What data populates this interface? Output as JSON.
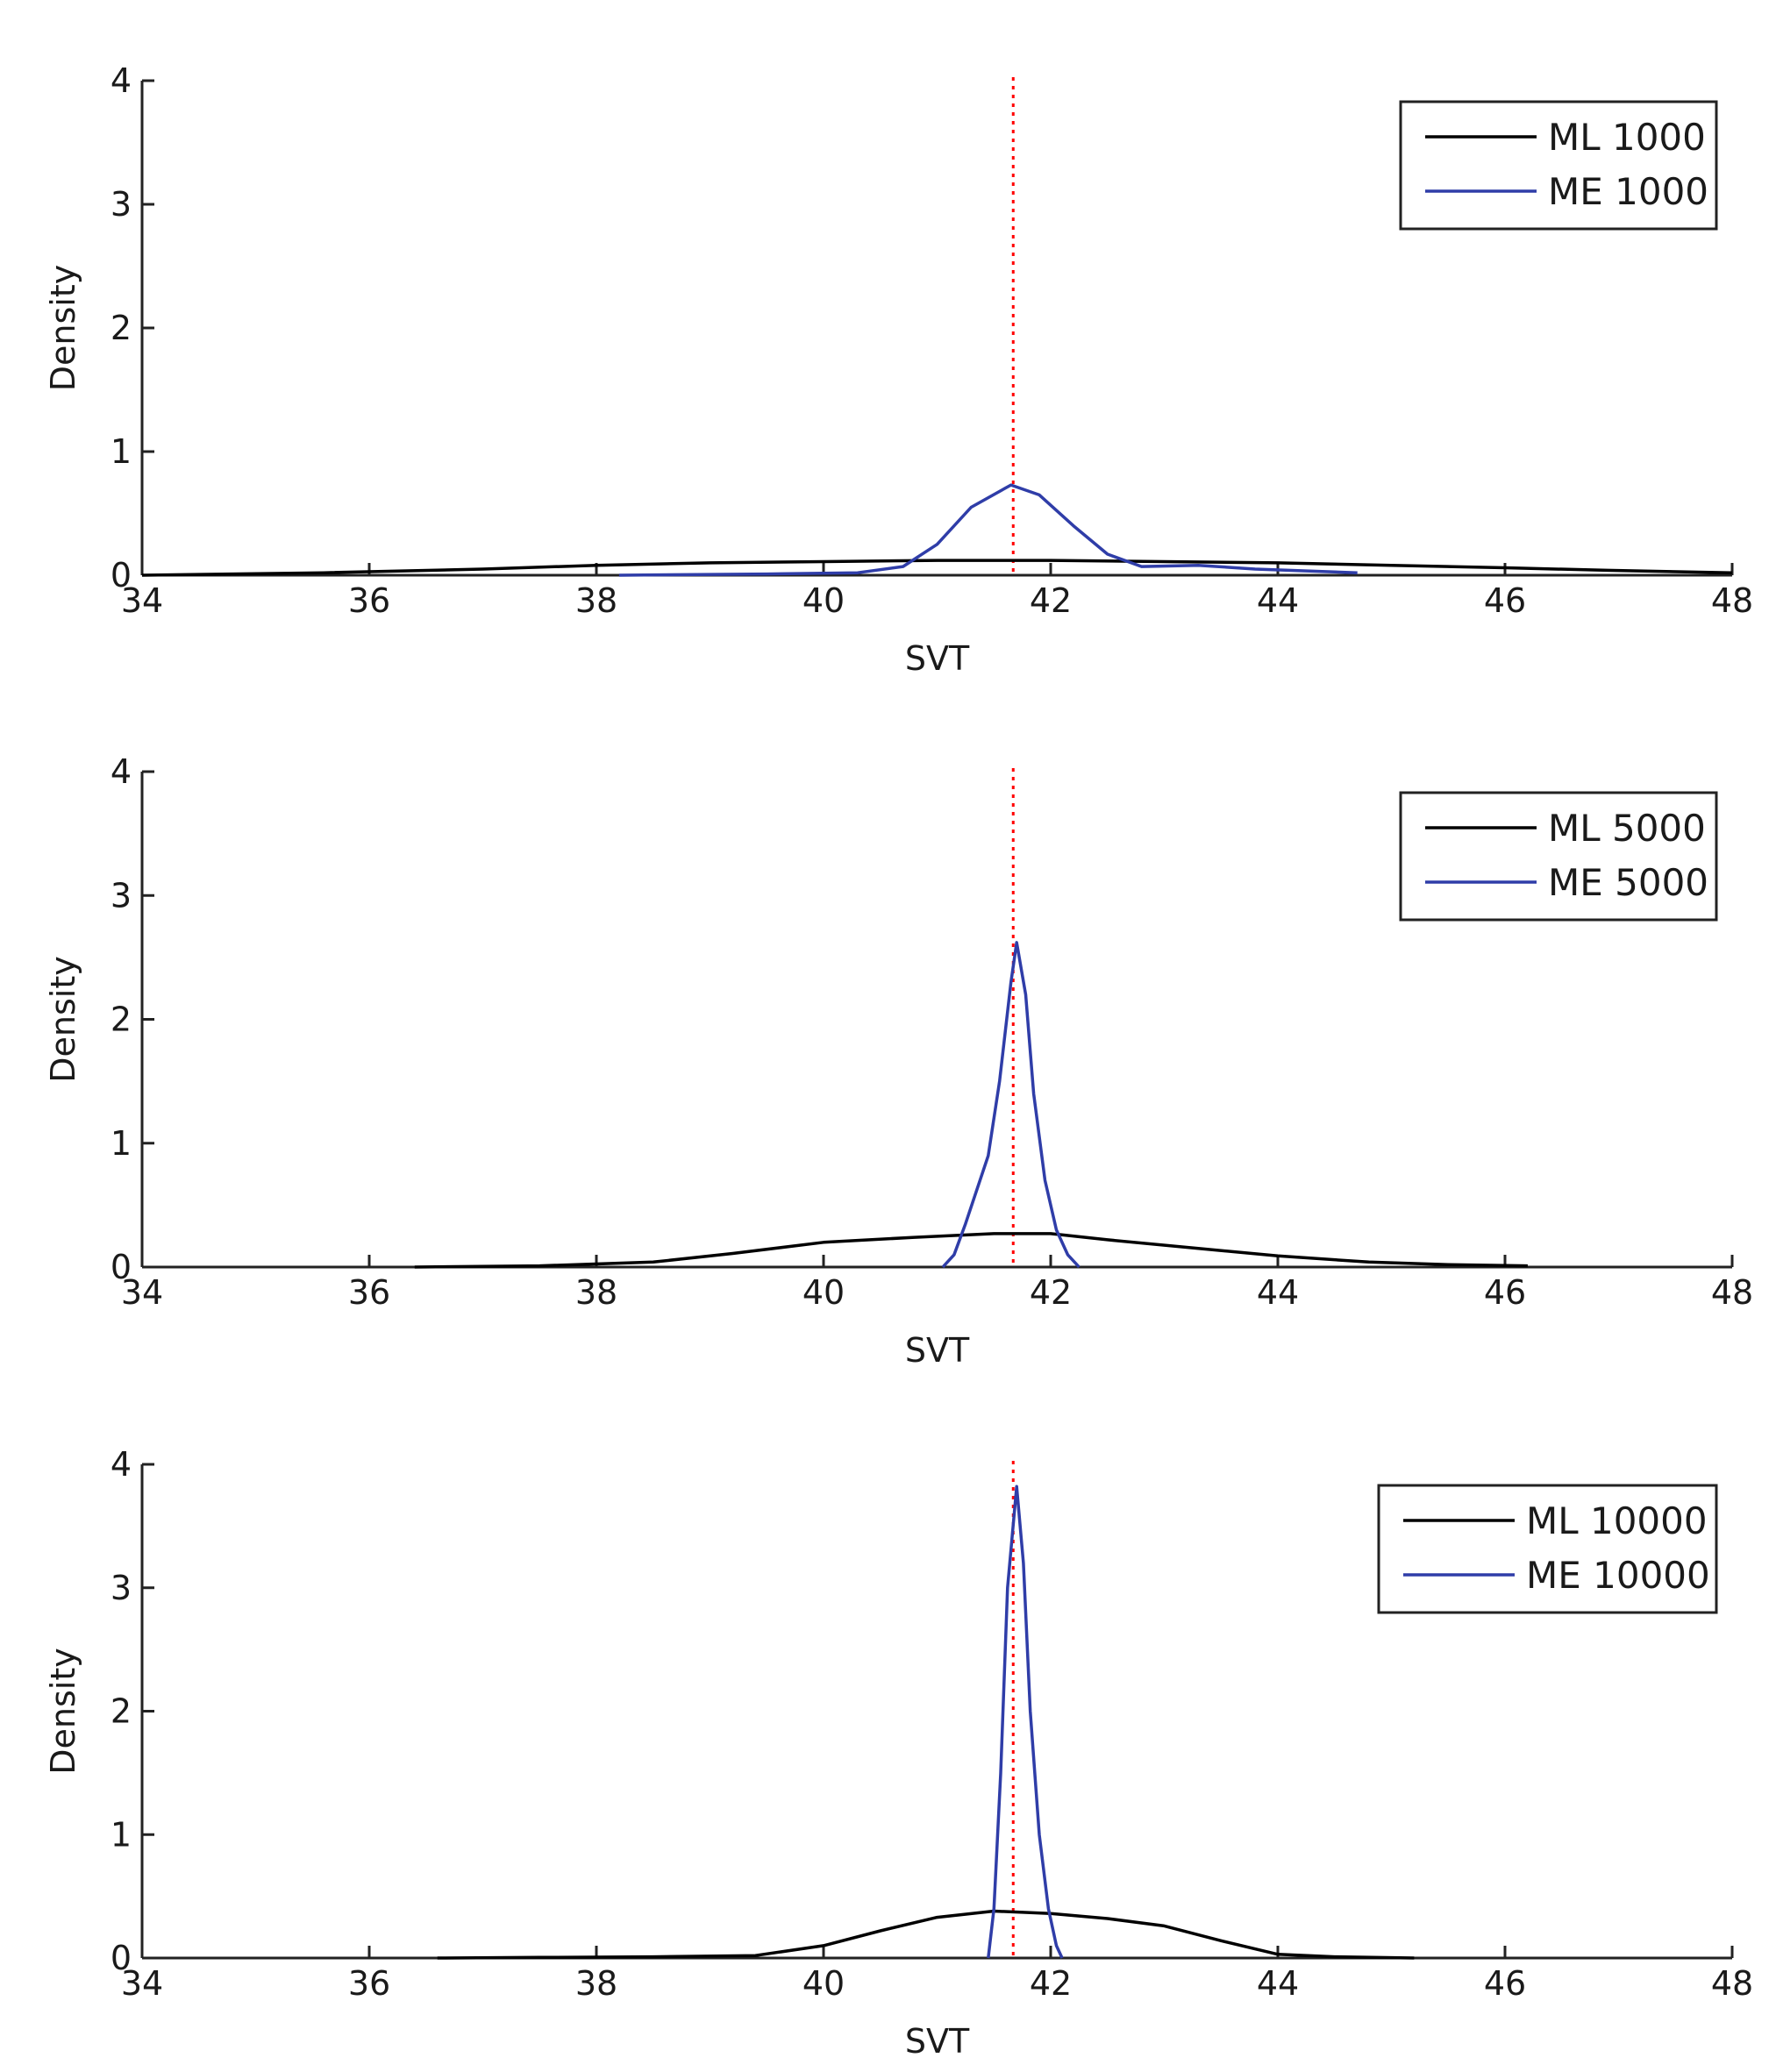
{
  "chart_data": [
    {
      "type": "line",
      "xlabel": "SVT",
      "ylabel": "Density",
      "xlim": [
        34,
        48
      ],
      "ylim": [
        0,
        4
      ],
      "xticks": [
        34,
        36,
        38,
        40,
        42,
        44,
        46,
        48
      ],
      "yticks": [
        0,
        1,
        2,
        3,
        4
      ],
      "reference_line": {
        "x": 41.67,
        "color": "#ff0000",
        "style": "dotted"
      },
      "legend": {
        "placement": "top-right"
      },
      "series": [
        {
          "name": "ML 1000",
          "color": "#000000",
          "points": [
            [
              34,
              0.0
            ],
            [
              35.6,
              0.02
            ],
            [
              37,
              0.05
            ],
            [
              38,
              0.08
            ],
            [
              39,
              0.1
            ],
            [
              40,
              0.11
            ],
            [
              41,
              0.12
            ],
            [
              42,
              0.12
            ],
            [
              43,
              0.11
            ],
            [
              44,
              0.1
            ],
            [
              45,
              0.08
            ],
            [
              46,
              0.06
            ],
            [
              46.9,
              0.04
            ],
            [
              48,
              0.02
            ]
          ]
        },
        {
          "name": "ME 1000",
          "color": "#2f3da8",
          "points": [
            [
              38.2,
              0.0
            ],
            [
              39.5,
              0.01
            ],
            [
              40.3,
              0.02
            ],
            [
              40.7,
              0.07
            ],
            [
              41.0,
              0.25
            ],
            [
              41.3,
              0.55
            ],
            [
              41.65,
              0.73
            ],
            [
              41.9,
              0.65
            ],
            [
              42.2,
              0.4
            ],
            [
              42.5,
              0.17
            ],
            [
              42.8,
              0.07
            ],
            [
              43.3,
              0.08
            ],
            [
              43.8,
              0.05
            ],
            [
              44.7,
              0.02
            ]
          ]
        }
      ]
    },
    {
      "type": "line",
      "xlabel": "SVT",
      "ylabel": "Density",
      "xlim": [
        34,
        48
      ],
      "ylim": [
        0,
        4
      ],
      "xticks": [
        34,
        36,
        38,
        40,
        42,
        44,
        46,
        48
      ],
      "yticks": [
        0,
        1,
        2,
        3,
        4
      ],
      "reference_line": {
        "x": 41.67,
        "color": "#ff0000",
        "style": "dotted"
      },
      "legend": {
        "placement": "top-right"
      },
      "series": [
        {
          "name": "ML 5000",
          "color": "#000000",
          "points": [
            [
              36.4,
              0.0
            ],
            [
              37.5,
              0.01
            ],
            [
              38.5,
              0.04
            ],
            [
              39.2,
              0.11
            ],
            [
              40,
              0.2
            ],
            [
              40.8,
              0.24
            ],
            [
              41.5,
              0.27
            ],
            [
              42,
              0.27
            ],
            [
              42.5,
              0.22
            ],
            [
              43.3,
              0.15
            ],
            [
              44,
              0.09
            ],
            [
              44.8,
              0.04
            ],
            [
              45.5,
              0.02
            ],
            [
              46.2,
              0.01
            ]
          ]
        },
        {
          "name": "ME 5000",
          "color": "#2f3da8",
          "points": [
            [
              41.05,
              0.0
            ],
            [
              41.15,
              0.1
            ],
            [
              41.25,
              0.35
            ],
            [
              41.45,
              0.9
            ],
            [
              41.55,
              1.5
            ],
            [
              41.65,
              2.3
            ],
            [
              41.7,
              2.62
            ],
            [
              41.78,
              2.2
            ],
            [
              41.85,
              1.4
            ],
            [
              41.95,
              0.7
            ],
            [
              42.05,
              0.3
            ],
            [
              42.15,
              0.1
            ],
            [
              42.25,
              0.0
            ]
          ]
        }
      ]
    },
    {
      "type": "line",
      "xlabel": "SVT",
      "ylabel": "Density",
      "xlim": [
        34,
        48
      ],
      "ylim": [
        0,
        4
      ],
      "xticks": [
        34,
        36,
        38,
        40,
        42,
        44,
        46,
        48
      ],
      "yticks": [
        0,
        1,
        2,
        3,
        4
      ],
      "reference_line": {
        "x": 41.67,
        "color": "#ff0000",
        "style": "dotted"
      },
      "legend": {
        "placement": "top-right"
      },
      "series": [
        {
          "name": "ML 10000",
          "color": "#000000",
          "points": [
            [
              36.6,
              0.0
            ],
            [
              37.5,
              0.005
            ],
            [
              38.5,
              0.01
            ],
            [
              39.4,
              0.02
            ],
            [
              40,
              0.1
            ],
            [
              40.5,
              0.22
            ],
            [
              41.0,
              0.33
            ],
            [
              41.5,
              0.38
            ],
            [
              42.0,
              0.36
            ],
            [
              42.5,
              0.32
            ],
            [
              43,
              0.26
            ],
            [
              43.5,
              0.14
            ],
            [
              44,
              0.03
            ],
            [
              44.5,
              0.01
            ],
            [
              45.2,
              0.0
            ]
          ]
        },
        {
          "name": "ME 10000",
          "color": "#2f3da8",
          "points": [
            [
              41.45,
              0.0
            ],
            [
              41.5,
              0.4
            ],
            [
              41.56,
              1.5
            ],
            [
              41.62,
              3.0
            ],
            [
              41.7,
              3.82
            ],
            [
              41.76,
              3.2
            ],
            [
              41.82,
              2.0
            ],
            [
              41.9,
              1.0
            ],
            [
              41.98,
              0.4
            ],
            [
              42.05,
              0.1
            ],
            [
              42.1,
              0.0
            ]
          ]
        }
      ]
    }
  ]
}
